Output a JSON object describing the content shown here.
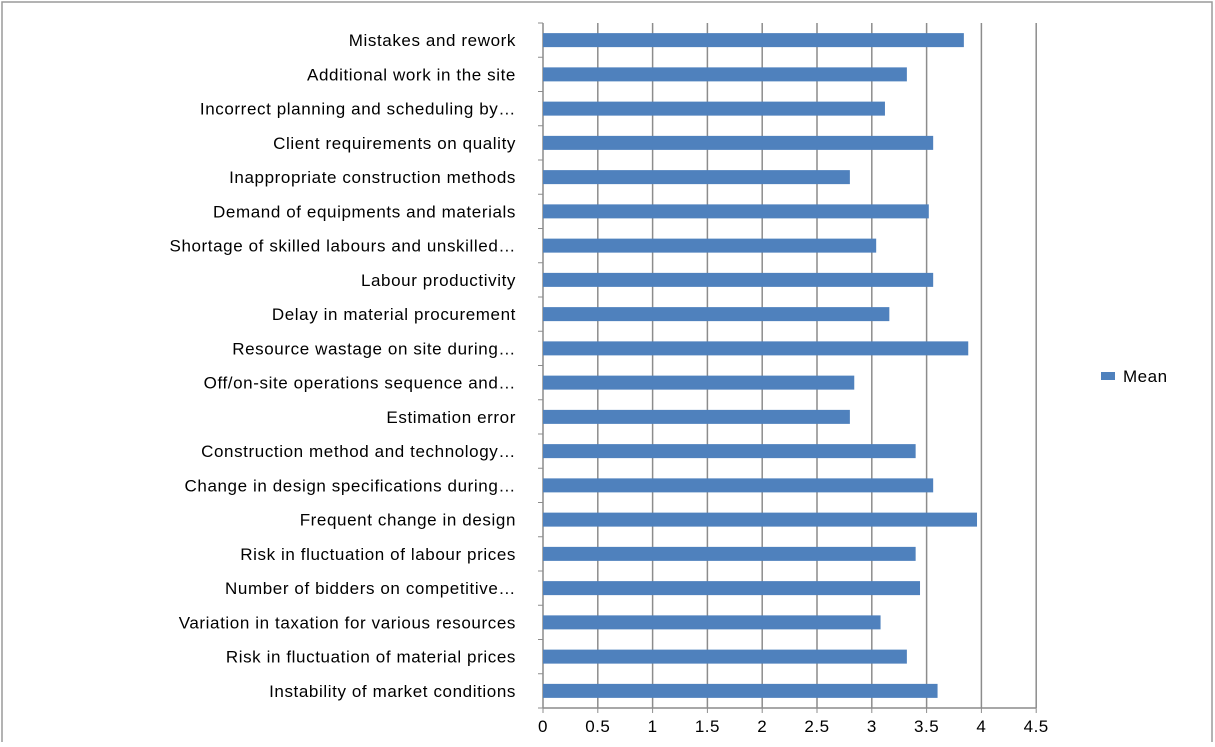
{
  "chart_data": {
    "type": "bar",
    "orientation": "horizontal",
    "categories": [
      "Mistakes and rework",
      "Additional work in the site",
      "Incorrect planning and scheduling by…",
      "Client requirements on quality",
      "Inappropriate construction methods",
      "Demand of equipments and materials",
      "Shortage of skilled labours and unskilled…",
      "Labour productivity",
      "Delay in material procurement",
      "Resource wastage on site during…",
      "Off/on-site operations sequence and…",
      "Estimation error",
      "Construction method and technology…",
      "Change in design specifications during…",
      "Frequent change in design",
      "Risk in fluctuation of labour prices",
      "Number of bidders on competitive…",
      "Variation in taxation for various resources",
      "Risk in fluctuation of material prices",
      "Instability of market conditions"
    ],
    "series": [
      {
        "name": "Mean",
        "color": "#4F81BD",
        "values": [
          3.84,
          3.32,
          3.12,
          3.56,
          2.8,
          3.52,
          3.04,
          3.56,
          3.16,
          3.88,
          2.84,
          2.8,
          3.4,
          3.56,
          3.96,
          3.4,
          3.44,
          3.08,
          3.32,
          3.6
        ]
      }
    ],
    "x_ticks": [
      "0",
      "0.5",
      "1",
      "1.5",
      "2",
      "2.5",
      "3",
      "3.5",
      "4",
      "4.5"
    ],
    "xlim": [
      0,
      4.5
    ],
    "grid": "vertical major gridlines",
    "legend_position": "right",
    "title": "",
    "xlabel": "",
    "ylabel": ""
  }
}
